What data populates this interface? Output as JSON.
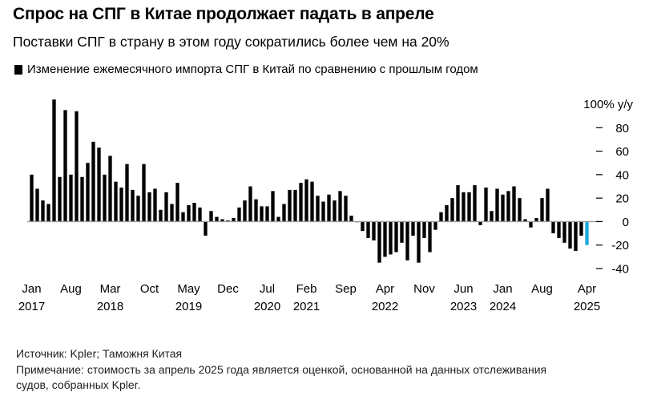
{
  "title": "Спрос на СПГ в Китае продолжает падать в апреле",
  "subtitle": "Поставки СПГ в страну в этом году сократились более чем на 20%",
  "legend": "Изменение ежемесячного импорта СПГ в Китай по сравнению с прошлым годом",
  "source": "Источник: Kpler; Таможня Китая",
  "note_line1": "Примечание: стоимость за апрель 2025 года является оценкой, основанной на данных отслеживания",
  "note_line2": "судов, собранных Kpler.",
  "colors": {
    "bar": "#000000",
    "estimate": "#1ba9e0",
    "zero_line": "#999999"
  },
  "chart_data": {
    "type": "bar",
    "ylabel": "100% y/y",
    "ylim": [
      -40,
      100
    ],
    "yticks": [
      80,
      60,
      40,
      20,
      0,
      -20,
      -40
    ],
    "ytick_labels": [
      "80",
      "60",
      "40",
      "20",
      "0",
      "-20",
      "-40"
    ],
    "x_tick_labels": [
      {
        "index": 0,
        "month": "Jan",
        "year": "2017"
      },
      {
        "index": 7,
        "month": "Aug",
        "year": ""
      },
      {
        "index": 14,
        "month": "Mar",
        "year": "2018"
      },
      {
        "index": 21,
        "month": "Oct",
        "year": ""
      },
      {
        "index": 28,
        "month": "May",
        "year": "2019"
      },
      {
        "index": 35,
        "month": "Dec",
        "year": ""
      },
      {
        "index": 42,
        "month": "Jul",
        "year": "2020"
      },
      {
        "index": 49,
        "month": "Feb",
        "year": "2021"
      },
      {
        "index": 56,
        "month": "Sep",
        "year": ""
      },
      {
        "index": 63,
        "month": "Apr",
        "year": "2022"
      },
      {
        "index": 70,
        "month": "Nov",
        "year": ""
      },
      {
        "index": 77,
        "month": "Jun",
        "year": "2023"
      },
      {
        "index": 84,
        "month": "Jan",
        "year": "2024"
      },
      {
        "index": 91,
        "month": "Aug",
        "year": ""
      },
      {
        "index": 99,
        "month": "Apr",
        "year": "2025"
      }
    ],
    "start": "2017-01",
    "end": "2025-04",
    "values": [
      40,
      28,
      18,
      15,
      104,
      38,
      95,
      40,
      94,
      38,
      50,
      68,
      63,
      40,
      56,
      34,
      29,
      49,
      27,
      22,
      49,
      25,
      28,
      10,
      25,
      15,
      33,
      8,
      14,
      16,
      12,
      -12,
      9,
      4,
      2,
      1,
      3,
      12,
      18,
      30,
      19,
      13,
      13,
      26,
      4,
      15,
      27,
      27,
      33,
      36,
      34,
      22,
      17,
      23,
      18,
      26,
      22,
      5,
      0,
      -8,
      -14,
      -16,
      -35,
      -30,
      -28,
      -26,
      -18,
      -33,
      -12,
      -35,
      -14,
      -26,
      -7,
      8,
      14,
      20,
      31,
      25,
      25,
      31,
      -3,
      29,
      9,
      28,
      23,
      26,
      30,
      20,
      2,
      -5,
      3,
      20,
      28,
      -10,
      -14,
      -18,
      -23,
      -25,
      -12,
      -20
    ],
    "estimate_last_value": true
  }
}
